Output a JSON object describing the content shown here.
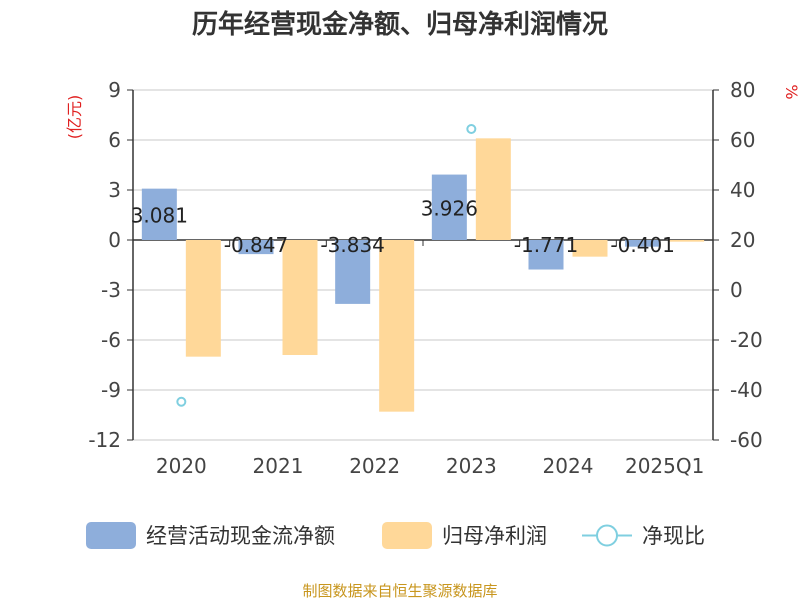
{
  "chart_data": {
    "type": "bar",
    "title": "历年经营现金净额、归母净利润情况",
    "categories": [
      "2020",
      "2021",
      "2022",
      "2023",
      "2024",
      "2025Q1"
    ],
    "y_left": {
      "unit": "(亿元)",
      "lim": [
        -12,
        9
      ],
      "ticks": [
        9,
        6,
        3,
        0,
        -3,
        -6,
        -9,
        -12
      ]
    },
    "y_right": {
      "unit": "%",
      "lim": [
        -60,
        80
      ],
      "ticks": [
        80,
        60,
        40,
        20,
        0,
        -20,
        -40,
        -60
      ]
    },
    "series": [
      {
        "name": "经营活动现金流净额",
        "type": "bar",
        "axis": "left",
        "color": "#8eaedb",
        "values": [
          3.081,
          -0.847,
          -3.834,
          3.926,
          -1.771,
          -0.401
        ],
        "labels": [
          "3.081",
          "-0.847",
          "-3.834",
          "3.926",
          "-1.771",
          "-0.401"
        ]
      },
      {
        "name": "归母净利润",
        "type": "bar",
        "axis": "left",
        "color": "#ffd899",
        "values": [
          -7.0,
          -6.9,
          -10.3,
          6.1,
          -1.0,
          -0.1
        ]
      },
      {
        "name": "净现比",
        "type": "scatter",
        "axis": "right",
        "color": "#7fcfe0",
        "values": [
          -44.7,
          null,
          null,
          64.4,
          null,
          null
        ]
      }
    ],
    "grid": true,
    "legend_position": "bottom"
  },
  "source_text": "制图数据来自恒生聚源数据库"
}
